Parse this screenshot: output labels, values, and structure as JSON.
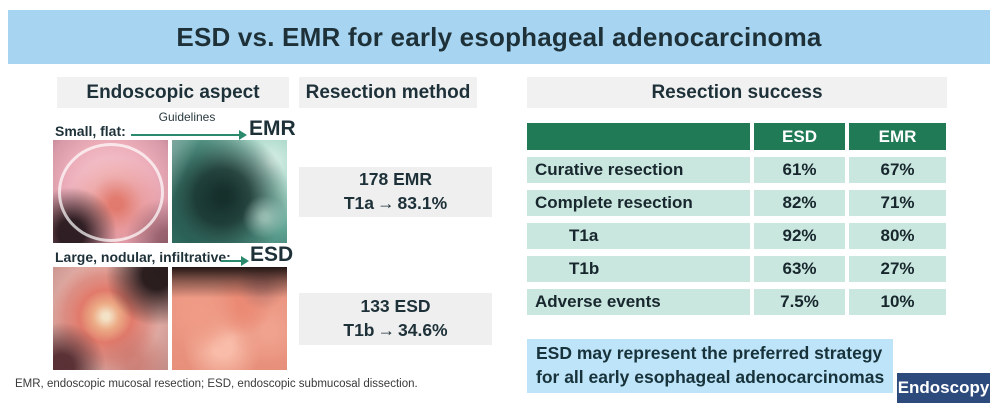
{
  "title": "ESD vs. EMR for early esophageal adenocarcinoma",
  "colors": {
    "title_bar_blue": "#a7d5f1",
    "conclusion_box_blue": "#bde4f8",
    "section_header_gray": "#f1f1f1",
    "method_box_gray": "#efefef",
    "table_header_green": "#1f7a55",
    "table_row_teal": "#c9e7de",
    "arrow_teal": "#2b8a6e",
    "logo_navy": "#2d4a7c",
    "text_dark": "#1e3139"
  },
  "icons": {
    "arrow_right": "→"
  },
  "endoscopic_aspect": {
    "header": "Endoscopic aspect",
    "row1": {
      "label": "Small, flat:",
      "arrow_caption": "Guidelines",
      "target": "EMR",
      "images": [
        "endoscopic-photo-small-flat-lesion-cap-view",
        "endoscopic-photo-narrow-band-imaging-view"
      ]
    },
    "row2": {
      "label": "Large, nodular, infiltrative:",
      "target": "ESD",
      "images": [
        "endoscopic-photo-large-nodular-ulcerated-mass",
        "endoscopic-photo-nodular-infiltrative-lesion"
      ]
    }
  },
  "resection_method": {
    "header": "Resection method",
    "boxes": [
      {
        "line1": "178 EMR",
        "stage": "T1a",
        "value": "83.1%"
      },
      {
        "line1": "133 ESD",
        "stage": "T1b",
        "value": "34.6%"
      }
    ]
  },
  "resection_success": {
    "header": "Resection success",
    "columns": [
      "ESD",
      "EMR"
    ],
    "rows": [
      {
        "label": "Curative resection",
        "esd": "61%",
        "emr": "67%",
        "indent": false
      },
      {
        "label": "Complete resection",
        "esd": "82%",
        "emr": "71%",
        "indent": false
      },
      {
        "label": "T1a",
        "esd": "92%",
        "emr": "80%",
        "indent": true
      },
      {
        "label": "T1b",
        "esd": "63%",
        "emr": "27%",
        "indent": true
      },
      {
        "label": "Adverse events",
        "esd": "7.5%",
        "emr": "10%",
        "indent": false
      }
    ]
  },
  "conclusion": {
    "line1": "ESD may represent the preferred strategy",
    "line2": "for all early esophageal adenocarcinomas"
  },
  "journal_logo": "Endoscopy",
  "footnote": "EMR, endoscopic mucosal resection; ESD, endoscopic submucosal dissection.",
  "chart_data": {
    "type": "table",
    "title": "Resection success",
    "columns": [
      "",
      "ESD",
      "EMR"
    ],
    "rows": [
      [
        "Curative resection",
        "61%",
        "67%"
      ],
      [
        "Complete resection",
        "82%",
        "71%"
      ],
      [
        "T1a",
        "92%",
        "80%"
      ],
      [
        "T1b",
        "63%",
        "27%"
      ],
      [
        "Adverse events",
        "7.5%",
        "10%"
      ]
    ],
    "annotations": [
      "178 EMR: T1a → 83.1%",
      "133 ESD: T1b → 34.6%"
    ]
  }
}
